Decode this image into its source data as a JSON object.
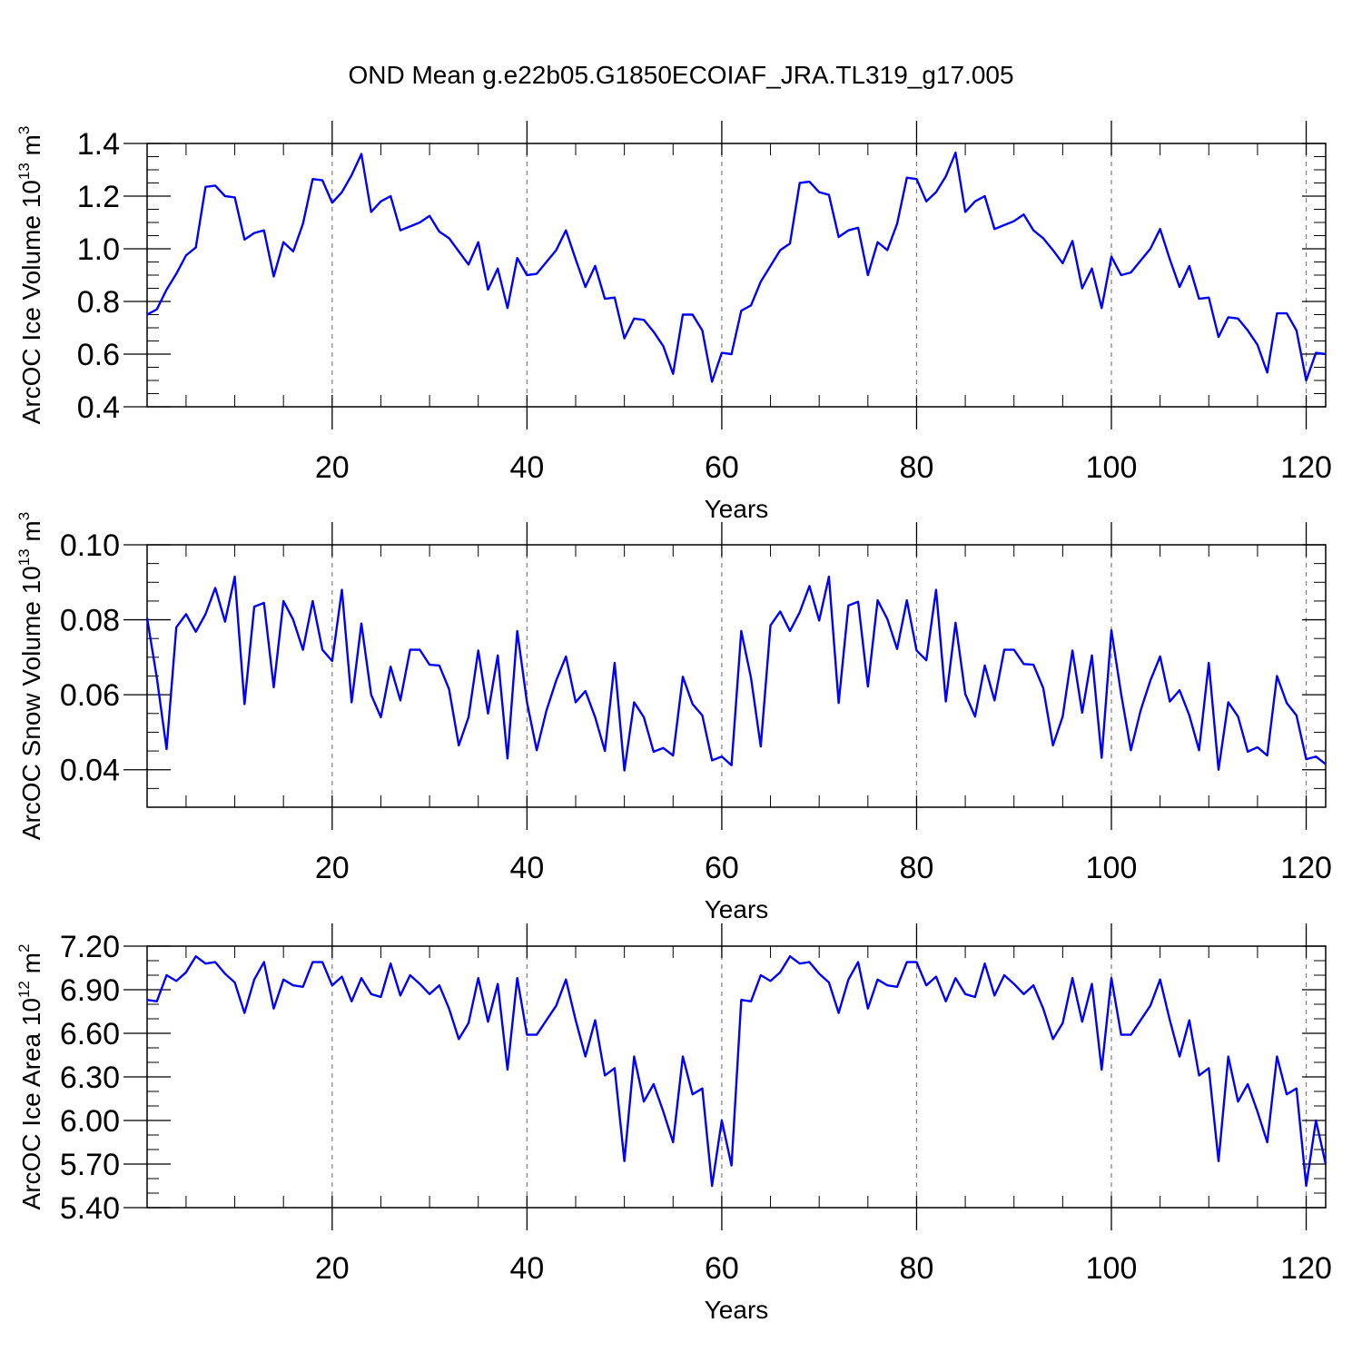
{
  "title": "OND Mean g.e22b05.G1850ECOIAF_JRA.TL319_g17.005",
  "colors": {
    "line": "#0000ff",
    "axis": "#000000",
    "grid": "#7f7f7f",
    "background": "#ffffff"
  },
  "chart_data": [
    {
      "type": "line",
      "xlabel": "Years",
      "ylabel": {
        "base": "ArcOC Ice Volume 10",
        "exponent": "13",
        "unit": "m",
        "unit_exponent": "3"
      },
      "xlim": [
        1,
        122
      ],
      "ylim": [
        0.4,
        1.4
      ],
      "xticks": [
        20,
        40,
        60,
        80,
        100,
        120
      ],
      "xtick_labels": [
        "20",
        "40",
        "60",
        "80",
        "100",
        "120"
      ],
      "yticks": [
        0.4,
        0.6,
        0.8,
        1.0,
        1.2,
        1.4
      ],
      "ytick_labels": [
        "0.4",
        "0.6",
        "0.8",
        "1.0",
        "1.2",
        "1.4"
      ],
      "yminor_step": 0.05,
      "grid": "dashed vertical lines at x ticks",
      "x_start": 1,
      "values": [
        0.75,
        0.77,
        0.845,
        0.905,
        0.975,
        1.005,
        1.235,
        1.24,
        1.2,
        1.195,
        1.035,
        1.06,
        1.07,
        0.895,
        1.025,
        0.99,
        1.095,
        1.265,
        1.26,
        1.175,
        1.215,
        1.28,
        1.36,
        1.14,
        1.18,
        1.2,
        1.07,
        1.085,
        1.1,
        1.125,
        1.065,
        1.04,
        0.99,
        0.94,
        1.025,
        0.845,
        0.925,
        0.775,
        0.965,
        0.9,
        0.905,
        0.95,
        0.995,
        1.07,
        0.96,
        0.855,
        0.935,
        0.81,
        0.815,
        0.66,
        0.735,
        0.73,
        0.685,
        0.63,
        0.525,
        0.75,
        0.75,
        0.69,
        0.495,
        0.605,
        0.6,
        0.765,
        0.785,
        0.875,
        0.935,
        0.995,
        1.02,
        1.25,
        1.255,
        1.215,
        1.205,
        1.045,
        1.07,
        1.08,
        0.9,
        1.025,
        0.995,
        1.095,
        1.27,
        1.265,
        1.18,
        1.215,
        1.275,
        1.365,
        1.14,
        1.18,
        1.2,
        1.075,
        1.09,
        1.105,
        1.13,
        1.07,
        1.04,
        0.995,
        0.945,
        1.03,
        0.85,
        0.925,
        0.775,
        0.97,
        0.9,
        0.91,
        0.955,
        1.0,
        1.075,
        0.96,
        0.855,
        0.935,
        0.81,
        0.815,
        0.665,
        0.74,
        0.735,
        0.69,
        0.635,
        0.53,
        0.755,
        0.755,
        0.69,
        0.5,
        0.605,
        0.6
      ]
    },
    {
      "type": "line",
      "xlabel": "Years",
      "ylabel": {
        "base": "ArcOC Snow Volume 10",
        "exponent": "13",
        "unit": "m",
        "unit_exponent": "3"
      },
      "xlim": [
        1,
        122
      ],
      "ylim": [
        0.03,
        0.1
      ],
      "xticks": [
        20,
        40,
        60,
        80,
        100,
        120
      ],
      "xtick_labels": [
        "20",
        "40",
        "60",
        "80",
        "100",
        "120"
      ],
      "yticks": [
        0.04,
        0.06,
        0.08,
        0.1
      ],
      "ytick_labels": [
        "0.04",
        "0.06",
        "0.08",
        "0.10"
      ],
      "yminor_step": 0.005,
      "grid": "dashed vertical lines at x ticks",
      "x_start": 1,
      "values": [
        0.0805,
        0.0645,
        0.0455,
        0.078,
        0.0815,
        0.0768,
        0.0815,
        0.0885,
        0.0795,
        0.0915,
        0.0575,
        0.0835,
        0.0845,
        0.062,
        0.085,
        0.08,
        0.072,
        0.085,
        0.072,
        0.069,
        0.088,
        0.058,
        0.079,
        0.06,
        0.054,
        0.0675,
        0.0585,
        0.072,
        0.072,
        0.068,
        0.0678,
        0.0615,
        0.0465,
        0.054,
        0.0718,
        0.055,
        0.0705,
        0.043,
        0.077,
        0.058,
        0.0452,
        0.0558,
        0.0638,
        0.0702,
        0.058,
        0.061,
        0.054,
        0.045,
        0.0685,
        0.0398,
        0.058,
        0.054,
        0.0448,
        0.0458,
        0.0438,
        0.0648,
        0.0575,
        0.0545,
        0.0425,
        0.0435,
        0.0412,
        0.077,
        0.0645,
        0.0462,
        0.0785,
        0.0822,
        0.077,
        0.082,
        0.089,
        0.0798,
        0.0915,
        0.0578,
        0.0838,
        0.0848,
        0.0622,
        0.0852,
        0.0802,
        0.0722,
        0.0852,
        0.0718,
        0.0692,
        0.088,
        0.0582,
        0.0792,
        0.0602,
        0.0542,
        0.0678,
        0.0585,
        0.072,
        0.072,
        0.0682,
        0.068,
        0.0618,
        0.0465,
        0.0542,
        0.0718,
        0.0552,
        0.0705,
        0.0432,
        0.0772,
        0.0602,
        0.0452,
        0.0558,
        0.0638,
        0.0702,
        0.0582,
        0.0612,
        0.0545,
        0.0452,
        0.0685,
        0.04,
        0.058,
        0.0542,
        0.0448,
        0.046,
        0.0438,
        0.065,
        0.0578,
        0.0545,
        0.0428,
        0.0435,
        0.0415
      ]
    },
    {
      "type": "line",
      "xlabel": "Years",
      "ylabel": {
        "base": "ArcOC Ice Area 10",
        "exponent": "12",
        "unit": "m",
        "unit_exponent": "2"
      },
      "xlim": [
        1,
        122
      ],
      "ylim": [
        5.4,
        7.2
      ],
      "xticks": [
        20,
        40,
        60,
        80,
        100,
        120
      ],
      "xtick_labels": [
        "20",
        "40",
        "60",
        "80",
        "100",
        "120"
      ],
      "yticks": [
        5.4,
        5.7,
        6.0,
        6.3,
        6.6,
        6.9,
        7.2
      ],
      "ytick_labels": [
        "5.40",
        "5.70",
        "6.00",
        "6.30",
        "6.60",
        "6.90",
        "7.20"
      ],
      "yminor_step": 0.1,
      "grid": "dashed vertical lines at x ticks",
      "x_start": 1,
      "values": [
        6.83,
        6.82,
        7.0,
        6.96,
        7.02,
        7.13,
        7.08,
        7.09,
        7.01,
        6.95,
        6.74,
        6.97,
        7.09,
        6.77,
        6.97,
        6.93,
        6.92,
        7.09,
        7.09,
        6.93,
        6.99,
        6.82,
        6.98,
        6.87,
        6.85,
        7.08,
        6.86,
        7.0,
        6.94,
        6.87,
        6.93,
        6.77,
        6.56,
        6.67,
        6.98,
        6.68,
        6.94,
        6.35,
        6.98,
        6.59,
        6.59,
        6.69,
        6.79,
        6.97,
        6.69,
        6.44,
        6.69,
        6.31,
        6.36,
        5.72,
        6.44,
        6.13,
        6.25,
        6.06,
        5.85,
        6.44,
        6.18,
        6.22,
        5.55,
        6.0,
        5.69,
        6.83,
        6.82,
        7.0,
        6.96,
        7.02,
        7.13,
        7.08,
        7.09,
        7.01,
        6.95,
        6.74,
        6.97,
        7.09,
        6.77,
        6.97,
        6.93,
        6.92,
        7.09,
        7.09,
        6.93,
        6.99,
        6.82,
        6.98,
        6.87,
        6.85,
        7.08,
        6.86,
        7.0,
        6.94,
        6.87,
        6.93,
        6.77,
        6.56,
        6.67,
        6.98,
        6.68,
        6.94,
        6.35,
        6.98,
        6.59,
        6.59,
        6.69,
        6.79,
        6.97,
        6.69,
        6.44,
        6.69,
        6.31,
        6.36,
        5.72,
        6.44,
        6.13,
        6.25,
        6.06,
        5.85,
        6.44,
        6.18,
        6.22,
        5.55,
        6.0,
        5.7
      ]
    }
  ]
}
